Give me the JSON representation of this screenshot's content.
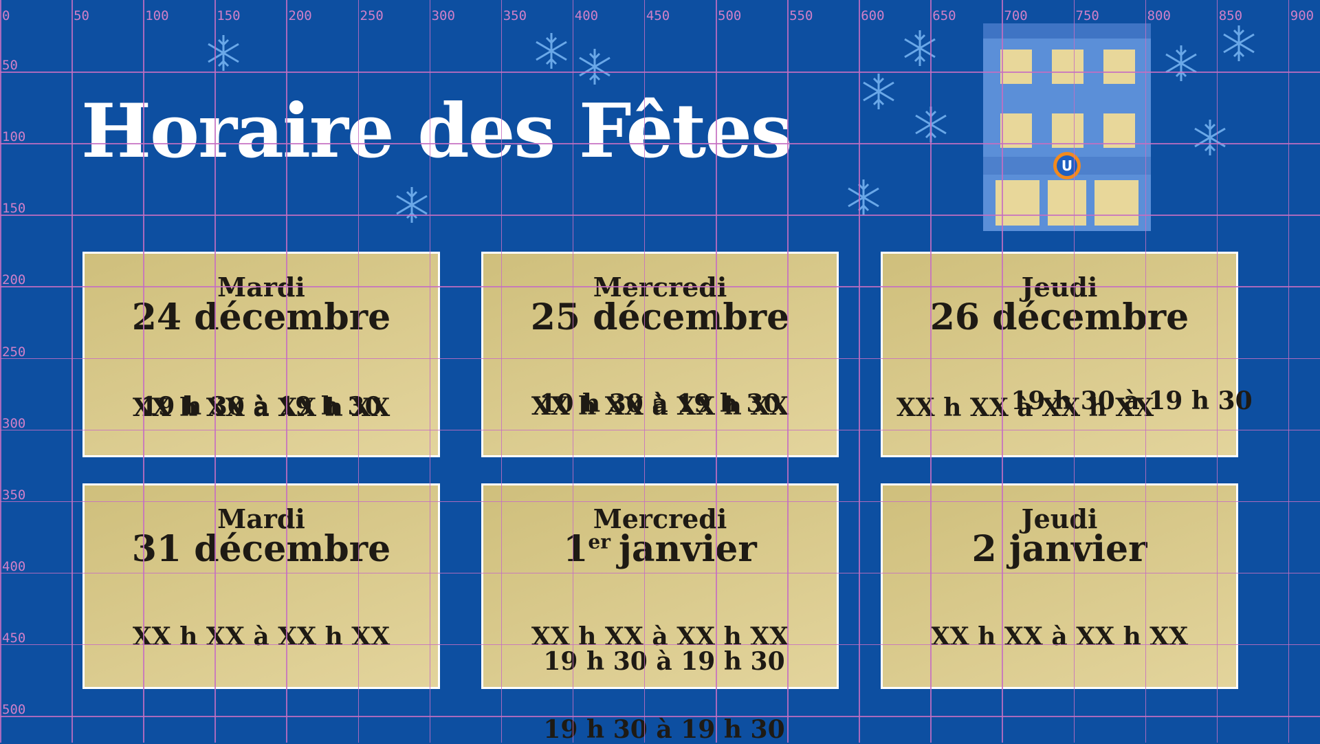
{
  "header": {
    "title": "Horaire des Fêtes"
  },
  "ruler": {
    "x_labels": [
      "0",
      "50",
      "100",
      "150",
      "200",
      "250",
      "300",
      "350",
      "400",
      "450",
      "500",
      "550",
      "600",
      "650",
      "700",
      "750",
      "800",
      "850",
      "900"
    ],
    "y_labels": [
      "50",
      "100",
      "150",
      "200",
      "250",
      "300",
      "350",
      "400",
      "450",
      "500"
    ]
  },
  "building": {
    "logo": "U"
  },
  "cards": [
    {
      "day": "Mardi",
      "date": "24 décembre",
      "hours": [
        "19 h 30 à 19 h 30",
        "XX h XX à XX h XX"
      ]
    },
    {
      "day": "Mercredi",
      "date": "25 décembre",
      "hours": [
        "10 h 30 à 19 h 30",
        "XX h XX à XX h XX"
      ]
    },
    {
      "day": "Jeudi",
      "date": "26 décembre",
      "hours": [
        "XX h XX à XX h XX",
        "19 h 30 à 19 h 30"
      ]
    },
    {
      "day": "Mardi",
      "date": "31 décembre",
      "hours": [
        "XX h XX à XX h XX"
      ]
    },
    {
      "day": "Mercredi",
      "date_num": "1",
      "date_sup": "er",
      "date_month": "janvier",
      "hours": [
        "XX h XX à XX h XX",
        "19 h 30 à 19 h 30",
        "19 h 30 à 19 h 30"
      ]
    },
    {
      "day": "Jeudi",
      "date": "2 janvier",
      "hours": [
        "XX h XX à XX h XX"
      ]
    }
  ]
}
